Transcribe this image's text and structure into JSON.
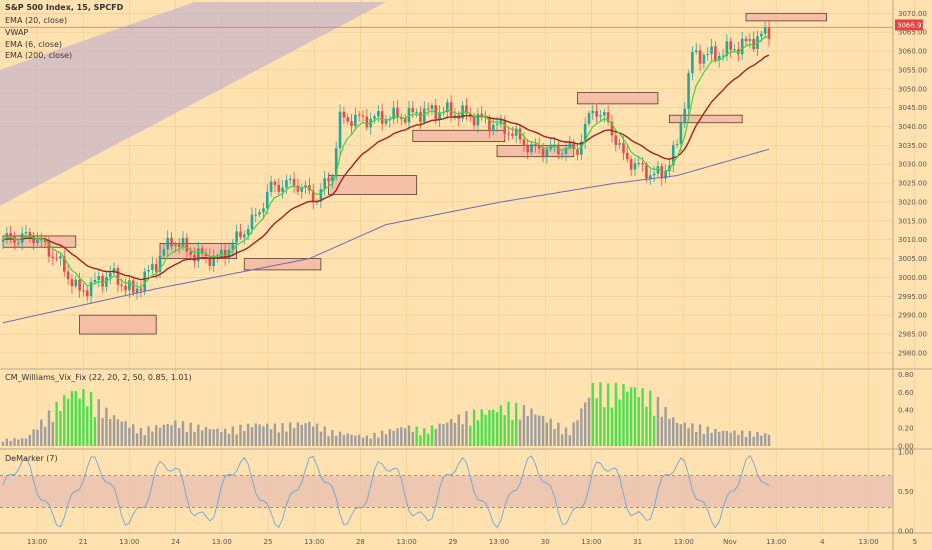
{
  "chart_data": {
    "type": "candlestick",
    "title": "S&P 500 Index, 15, SPCFD",
    "legend": [
      "EMA (20, close)",
      "VWAP",
      "EMA (6, close)",
      "EMA (200, close)"
    ],
    "price_axis": {
      "ticks": [
        "3070.00",
        "3065.00",
        "3060.00",
        "3055.00",
        "3050.00",
        "3045.00",
        "3040.00",
        "3035.00",
        "3030.00",
        "3025.00",
        "3020.00",
        "3015.00",
        "3010.00",
        "3005.00",
        "3000.00",
        "2995.00",
        "2990.00",
        "2985.00",
        "2980.00"
      ],
      "ylim": [
        2976,
        3073
      ],
      "last_price": "3066.91"
    },
    "time_axis": [
      "13:00",
      "21",
      "13:00",
      "24",
      "13:00",
      "25",
      "13:00",
      "28",
      "13:00",
      "29",
      "13:00",
      "30",
      "13:00",
      "31",
      "13:00",
      "Nov",
      "13:00",
      "4",
      "13:00",
      "5"
    ],
    "anchors": [
      [
        0,
        3010
      ],
      [
        8,
        3011
      ],
      [
        14,
        3005
      ],
      [
        20,
        2996
      ],
      [
        28,
        3001
      ],
      [
        34,
        2996
      ],
      [
        40,
        3004
      ],
      [
        44,
        3010
      ],
      [
        50,
        3006
      ],
      [
        56,
        3005
      ],
      [
        60,
        3009
      ],
      [
        66,
        3016
      ],
      [
        70,
        3024
      ],
      [
        76,
        3025
      ],
      [
        82,
        3021
      ],
      [
        86,
        3028
      ],
      [
        88,
        3042
      ],
      [
        96,
        3042
      ],
      [
        106,
        3043
      ],
      [
        110,
        3044
      ],
      [
        116,
        3044
      ],
      [
        122,
        3043
      ],
      [
        132,
        3039
      ],
      [
        138,
        3034
      ],
      [
        144,
        3034
      ],
      [
        150,
        3034
      ],
      [
        154,
        3045
      ],
      [
        158,
        3041
      ],
      [
        162,
        3032
      ],
      [
        168,
        3028
      ],
      [
        172,
        3027
      ],
      [
        176,
        3035
      ],
      [
        180,
        3059
      ],
      [
        186,
        3059
      ],
      [
        194,
        3062
      ],
      [
        200,
        3065
      ]
    ],
    "ema200": [
      [
        0,
        2988
      ],
      [
        40,
        2997
      ],
      [
        80,
        3005
      ],
      [
        100,
        3014
      ],
      [
        130,
        3020
      ],
      [
        160,
        3025
      ],
      [
        176,
        3027
      ],
      [
        200,
        3034
      ]
    ],
    "vwap_value": 3066.3,
    "zones": [
      {
        "i0": 0,
        "i1": 19,
        "lo": 3008,
        "hi": 3011
      },
      {
        "i0": 20,
        "i1": 40,
        "lo": 2985,
        "hi": 2990
      },
      {
        "i0": 41,
        "i1": 61,
        "lo": 3005,
        "hi": 3009
      },
      {
        "i0": 63,
        "i1": 83,
        "lo": 3002,
        "hi": 3005
      },
      {
        "i0": 85,
        "i1": 108,
        "lo": 3022,
        "hi": 3027
      },
      {
        "i0": 107,
        "i1": 131,
        "lo": 3036,
        "hi": 3039
      },
      {
        "i0": 129,
        "i1": 149,
        "lo": 3032,
        "hi": 3035
      },
      {
        "i0": 150,
        "i1": 171,
        "lo": 3046,
        "hi": 3049
      },
      {
        "i0": 174,
        "i1": 193,
        "lo": 3041,
        "hi": 3043
      },
      {
        "i0": 194,
        "i1": 215,
        "lo": 3068,
        "hi": 3070
      }
    ],
    "vix": {
      "label": "CM_Williams_Vix_Fix (22, 20, 2, 50, 0.85, 1.01)",
      "ticks": [
        "0.80",
        "0.60",
        "0.40",
        "0.20",
        "0.00"
      ],
      "ylim": [
        0,
        0.85
      ],
      "spikes": [
        [
          0,
          0.08
        ],
        [
          6,
          0.1
        ],
        [
          15,
          0.55
        ],
        [
          18,
          0.7
        ],
        [
          22,
          0.65
        ],
        [
          28,
          0.4
        ],
        [
          36,
          0.2
        ],
        [
          45,
          0.3
        ],
        [
          50,
          0.25
        ],
        [
          58,
          0.2
        ],
        [
          66,
          0.28
        ],
        [
          72,
          0.25
        ],
        [
          80,
          0.3
        ],
        [
          86,
          0.18
        ],
        [
          95,
          0.12
        ],
        [
          105,
          0.25
        ],
        [
          110,
          0.2
        ],
        [
          120,
          0.38
        ],
        [
          132,
          0.5
        ],
        [
          138,
          0.45
        ],
        [
          148,
          0.18
        ],
        [
          154,
          0.75
        ],
        [
          158,
          0.7
        ],
        [
          164,
          0.75
        ],
        [
          170,
          0.6
        ],
        [
          176,
          0.3
        ],
        [
          186,
          0.2
        ],
        [
          200,
          0.15
        ]
      ],
      "green_ranges": [
        [
          14,
          24
        ],
        [
          108,
          112
        ],
        [
          122,
          134
        ],
        [
          154,
          170
        ]
      ]
    },
    "demarker": {
      "label": "DeMarker (7)",
      "ticks": [
        "1.00",
        "0.50",
        "0.00"
      ],
      "ylim": [
        0,
        1
      ],
      "band": [
        0.3,
        0.7
      ]
    }
  }
}
